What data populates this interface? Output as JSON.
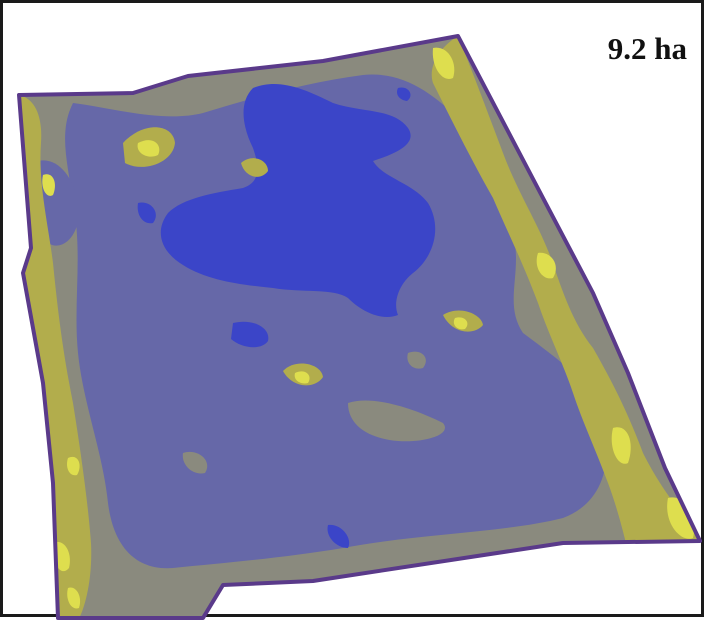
{
  "map": {
    "area_label": "9.2 ha",
    "colors": {
      "boundary": "#5a3a8a",
      "zone_gray": "#8a8a7e",
      "zone_slate": "#6668a8",
      "zone_blue": "#3b45c8",
      "zone_olive": "#b2ad4c",
      "zone_yellow": "#dede4e",
      "frame": "#1a1a1a"
    }
  }
}
